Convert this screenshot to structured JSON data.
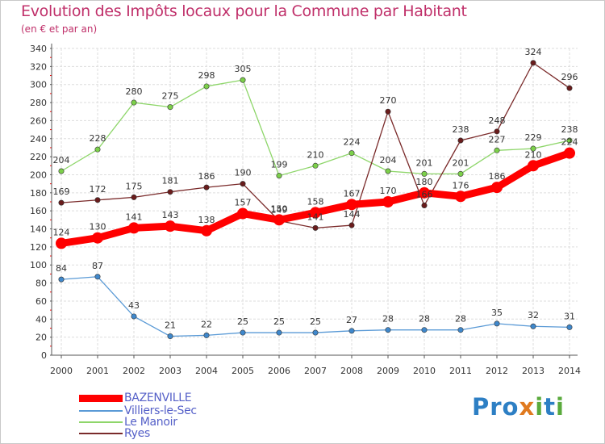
{
  "title": "Evolution des Impôts locaux pour la Commune par Habitant",
  "subtitle": "(en € et par an)",
  "logo": "Proxiti",
  "chart_data": {
    "type": "line",
    "categories": [
      "2000",
      "2001",
      "2002",
      "2003",
      "2004",
      "2005",
      "2006",
      "2007",
      "2008",
      "2009",
      "2010",
      "2011",
      "2012",
      "2013",
      "2014"
    ],
    "ylim": [
      0,
      340
    ],
    "yticks": [
      0,
      20,
      40,
      60,
      80,
      100,
      120,
      140,
      160,
      180,
      200,
      220,
      240,
      260,
      280,
      300,
      320,
      340
    ],
    "grid": true,
    "series": [
      {
        "name": "BAZENVILLE",
        "color": "#ff0000",
        "values": [
          124,
          130,
          141,
          143,
          138,
          157,
          150,
          158,
          167,
          170,
          180,
          176,
          186,
          210,
          224
        ]
      },
      {
        "name": "Villiers-le-Sec",
        "color": "#5a9ad6",
        "values": [
          84,
          87,
          43,
          21,
          22,
          25,
          25,
          25,
          27,
          28,
          28,
          28,
          35,
          32,
          31
        ]
      },
      {
        "name": "Le Manoir",
        "color": "#8ed66a",
        "values": [
          204,
          228,
          280,
          275,
          298,
          305,
          199,
          210,
          224,
          204,
          201,
          201,
          227,
          229,
          238
        ]
      },
      {
        "name": "Ryes",
        "color": "#7a2a2a",
        "values": [
          169,
          172,
          175,
          181,
          186,
          190,
          149,
          141,
          144,
          270,
          166,
          238,
          248,
          324,
          296
        ]
      }
    ]
  }
}
